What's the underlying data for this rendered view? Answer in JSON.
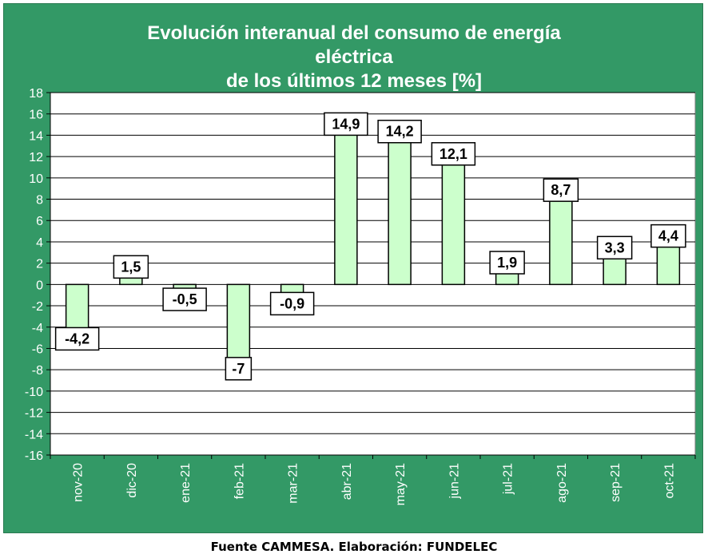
{
  "title": {
    "line1": "Evolución interanual del consumo  de energía",
    "line2": "eléctrica",
    "line3": "de los últimos 12 meses [%]"
  },
  "footer": "Fuente CAMMESA. Elaboración: FUNDELEC",
  "colors": {
    "panel": "#339966",
    "plot_background": "#ffffff",
    "bar_fill": "#ccffcc",
    "bar_stroke": "#000000"
  },
  "chart_data": {
    "type": "bar",
    "title": "Evolución interanual del consumo  de energía eléctrica de los últimos 12 meses [%]",
    "categories": [
      "nov-20",
      "dic-20",
      "ene-21",
      "feb-21",
      "mar-21",
      "abr-21",
      "may-21",
      "jun-21",
      "jul-21",
      "ago-21",
      "sep-21",
      "oct-21"
    ],
    "values": [
      -4.2,
      1.5,
      -0.5,
      -7,
      -0.9,
      14.9,
      14.2,
      12.1,
      1.9,
      8.7,
      3.3,
      4.4
    ],
    "data_labels": [
      "-4,2",
      "1,5",
      "-0,5",
      "-7",
      "-0,9",
      "14,9",
      "14,2",
      "12,1",
      "1,9",
      "8,7",
      "3,3",
      "4,4"
    ],
    "yticks": [
      "18",
      "16",
      "14",
      "12",
      "10",
      "8",
      "6",
      "4",
      "2",
      "0",
      "-2",
      "-4",
      "-6",
      "-8",
      "-10",
      "-12",
      "-14",
      "-16"
    ],
    "ylim": [
      -16,
      18
    ],
    "ytick_step": 2,
    "grid": true,
    "legend": "none",
    "xlabel": "",
    "ylabel": ""
  }
}
